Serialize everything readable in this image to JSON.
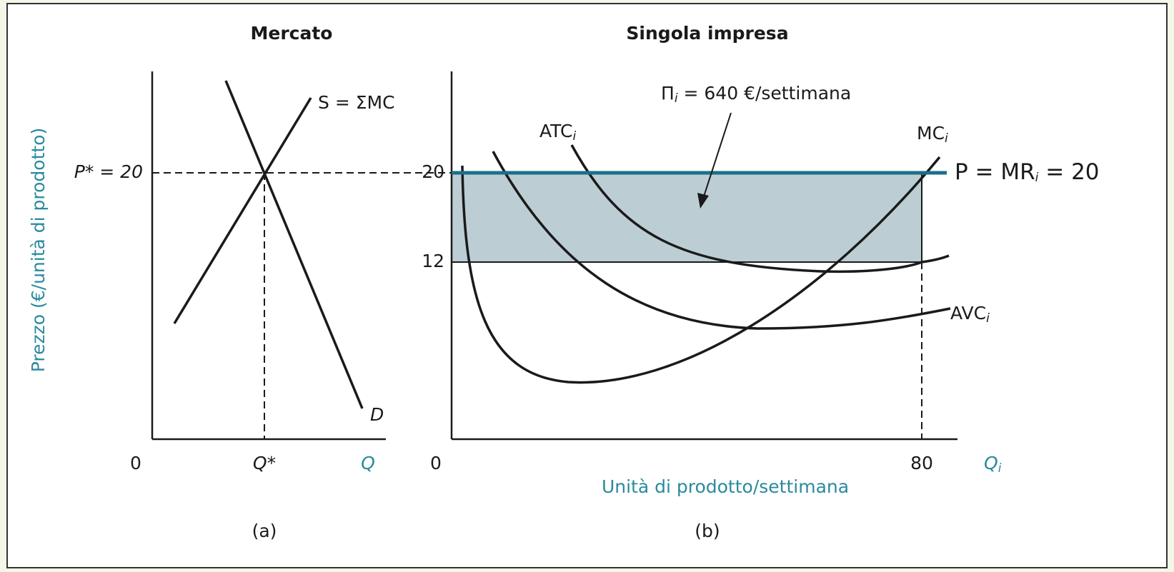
{
  "panel_a": {
    "title": "Mercato",
    "y_axis_label": "Prezzo (€/unità di prodotto)",
    "price_label": "P* = 20",
    "supply_label": "S = ΣMC",
    "demand_label": "D",
    "origin": "0",
    "quantity_label": "Q*",
    "x_axis_label": "Q",
    "caption": "(a)"
  },
  "panel_b": {
    "title": "Singola impresa",
    "profit_label": {
      "text": "Π",
      "sub": "i",
      "rest": " = 640 €/settimana"
    },
    "atc_label": {
      "text": "ATC",
      "sub": "i"
    },
    "mc_label": {
      "text": "MC",
      "sub": "i"
    },
    "avc_label": {
      "text": "AVC",
      "sub": "i"
    },
    "price_line_label": {
      "text": "P = MR",
      "sub": "i",
      "rest": " = 20"
    },
    "y_ticks": [
      "20",
      "12"
    ],
    "origin": "0",
    "x_tick": "80",
    "x_axis_symbol": {
      "text": "Q",
      "sub": "i"
    },
    "x_axis_label": "Unità di prodotto/settimana",
    "caption": "(b)"
  }
}
